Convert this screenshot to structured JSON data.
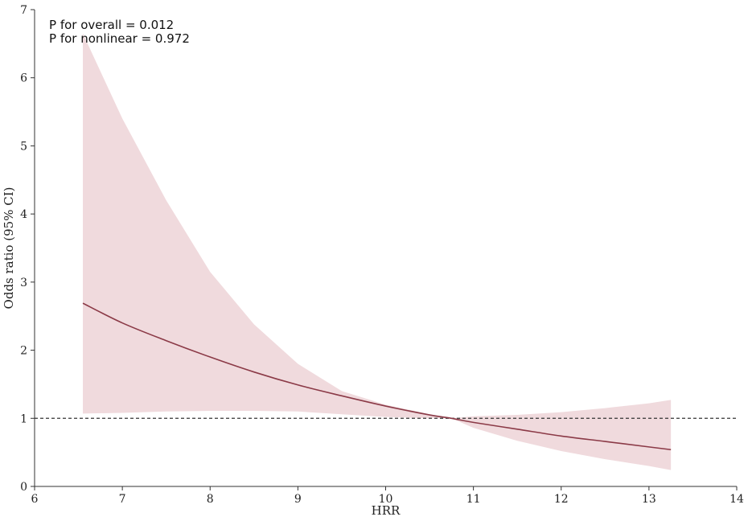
{
  "chart_data": {
    "type": "line",
    "title": "",
    "xlabel": "HRR",
    "ylabel": "Odds ratio (95% CI)",
    "xlim": [
      6,
      14
    ],
    "ylim": [
      0,
      7
    ],
    "x_ticks": [
      6,
      7,
      8,
      9,
      10,
      11,
      12,
      13,
      14
    ],
    "y_ticks": [
      0,
      1,
      2,
      3,
      4,
      5,
      6,
      7
    ],
    "reference_line": {
      "y": 1,
      "style": "dashed"
    },
    "annotations": [
      "P for overall = 0.012",
      "P for nonlinear = 0.972"
    ],
    "grid": false,
    "legend": "none",
    "series": [
      {
        "x": [
          6.55,
          7.0,
          7.5,
          8.0,
          8.5,
          9.0,
          9.5,
          10.0,
          10.5,
          10.75,
          11.0,
          11.5,
          12.0,
          12.5,
          13.0,
          13.25
        ],
        "y": [
          2.69,
          2.4,
          2.14,
          1.9,
          1.68,
          1.49,
          1.33,
          1.18,
          1.05,
          1.0,
          0.94,
          0.84,
          0.74,
          0.66,
          0.58,
          0.54
        ],
        "ci_lower": [
          1.07,
          1.08,
          1.1,
          1.11,
          1.11,
          1.1,
          1.06,
          1.02,
          1.0,
          1.0,
          0.86,
          0.67,
          0.52,
          0.4,
          0.3,
          0.24
        ],
        "ci_upper": [
          6.65,
          5.4,
          4.2,
          3.15,
          2.38,
          1.8,
          1.4,
          1.2,
          1.06,
          1.0,
          1.03,
          1.05,
          1.09,
          1.15,
          1.22,
          1.27
        ]
      }
    ],
    "colors": {
      "line": "#8b3a47",
      "band": "#f0dadd",
      "axis": "#333333",
      "reference": "#333333"
    }
  }
}
